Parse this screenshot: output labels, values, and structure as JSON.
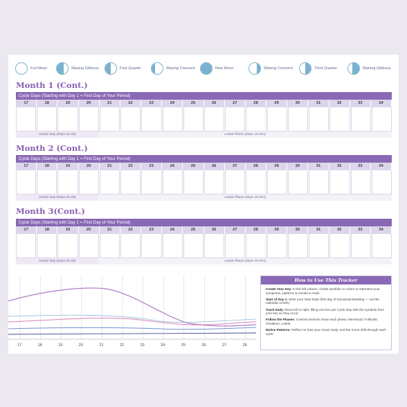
{
  "moon_phases": [
    {
      "label": "Full Moon",
      "icon": "full-moon-icon",
      "fill": "none"
    },
    {
      "label": "Waxing Gibbous",
      "icon": "waxing-gibbous-icon",
      "fill": "left-large"
    },
    {
      "label": "First Quarter",
      "icon": "first-quarter-icon",
      "fill": "left-half"
    },
    {
      "label": "Waxing Crescent",
      "icon": "waxing-crescent-icon",
      "fill": "left-small"
    },
    {
      "label": "New Moon",
      "icon": "new-moon-icon",
      "fill": "full"
    },
    {
      "label": "Waning Crescent",
      "icon": "waning-crescent-icon",
      "fill": "right-small"
    },
    {
      "label": "Third Quarter",
      "icon": "third-quarter-icon",
      "fill": "right-half"
    },
    {
      "label": "Waning Gibbous",
      "icon": "waning-gibbous-icon",
      "fill": "right-large"
    }
  ],
  "months": [
    {
      "title": "Month 1 (Cont.)",
      "header": "Cycle Days (Starting with Day 1 = First Day of Your Period)",
      "days": [
        "17",
        "18",
        "19",
        "20",
        "21",
        "22",
        "23",
        "24",
        "25",
        "26",
        "27",
        "28",
        "29",
        "30",
        "31",
        "32",
        "33",
        "34"
      ],
      "ovulation_label": "Ovarie Day (Days 16-20)",
      "luteal_label": "Luteal Phase (Days 15-28+)"
    },
    {
      "title": "Month 2 (Cont.)",
      "header": "Cycle Days (Starting with Day 1 = First Day of Your Period)",
      "days": [
        "17",
        "18",
        "19",
        "20",
        "21",
        "22",
        "23",
        "24",
        "25",
        "26",
        "27",
        "28",
        "29",
        "30",
        "31",
        "32",
        "33",
        "34"
      ],
      "ovulation_label": "Ovarie Day (Days 16-20)",
      "luteal_label": "Luteal Phase (Days 15-28+)"
    },
    {
      "title": "Month 3(Cont.)",
      "header": "Cycle Days (Starting with Day 1 = First Day of Your Period)",
      "days": [
        "17",
        "18",
        "19",
        "20",
        "21",
        "22",
        "23",
        "24",
        "25",
        "26",
        "27",
        "28",
        "29",
        "30",
        "31",
        "32",
        "33",
        "34"
      ],
      "ovulation_label": "Ovarie Day (Days 16-20)",
      "luteal_label": "Luteal Phase (Days 15-28+)"
    }
  ],
  "graph": {
    "x_labels": [
      "17",
      "18",
      "19",
      "20",
      "21",
      "22",
      "23",
      "24",
      "25",
      "26",
      "27",
      "28"
    ],
    "colors": {
      "purple": "#b07ac4",
      "blue": "#6f8fcf",
      "pink": "#d77fb4",
      "navy": "#3d4a8c",
      "lightblue": "#8ab8d8"
    }
  },
  "howto": {
    "title": "How to Use This Tracker",
    "items": [
      {
        "lead": "Create Your Key:",
        "text": " In the left column, create symbols or colors to represent your symptoms, patterns & moods to track"
      },
      {
        "lead": "Start of Day 1:",
        "text": " Write your Start Date (first day of menstrual bleeding — not the calendar month)."
      },
      {
        "lead": "Track Daily:",
        "text": " Move left to right, filling one box per Cycle Day with the symbols from your key as they occur."
      },
      {
        "lead": "Follow the Phases:",
        "text": " Colored sections show each phase: Menstrual, Follicular, Ovulation, Luteal"
      },
      {
        "lead": "Notice Patterns:",
        "text": " Reflect on how your mood, body, and the moon shift through each cycle"
      }
    ]
  }
}
